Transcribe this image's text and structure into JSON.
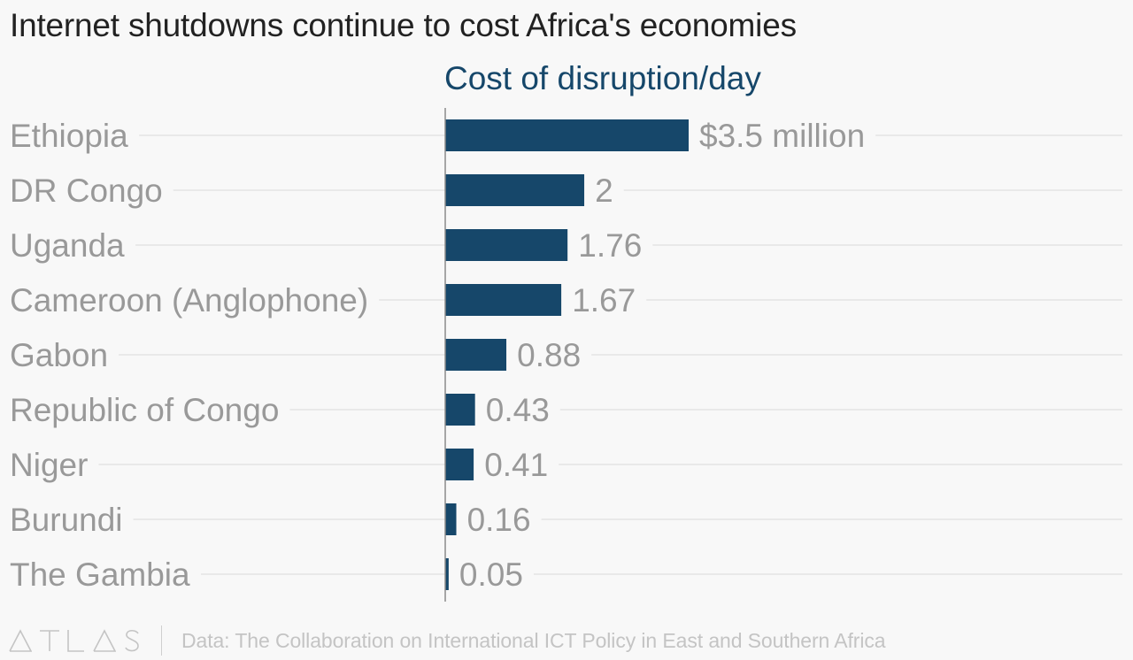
{
  "chart_data": {
    "type": "bar",
    "orientation": "horizontal",
    "title": "Internet shutdowns continue to cost Africa's economies",
    "column_header": "Cost of disruption/day",
    "categories": [
      "Ethiopia",
      "DR Congo",
      "Uganda",
      "Cameroon (Anglophone)",
      "Gabon",
      "Republic of Congo",
      "Niger",
      "Burundi",
      "The Gambia"
    ],
    "values": [
      3.5,
      2,
      1.76,
      1.67,
      0.88,
      0.43,
      0.41,
      0.16,
      0.05
    ],
    "value_labels": [
      "$3.5 million",
      "2",
      "1.76",
      "1.67",
      "0.88",
      "0.43",
      "0.41",
      "0.16",
      "0.05"
    ],
    "unit": "$ million",
    "xlim": [
      0,
      3.5
    ],
    "bar_color": "#16476a",
    "label_color": "#999999",
    "gridlines": true
  },
  "footer": {
    "logo_letters": [
      "A",
      "T",
      "L",
      "A",
      "S"
    ],
    "source": "Data: The Collaboration on International ICT Policy in East and Southern Africa"
  }
}
